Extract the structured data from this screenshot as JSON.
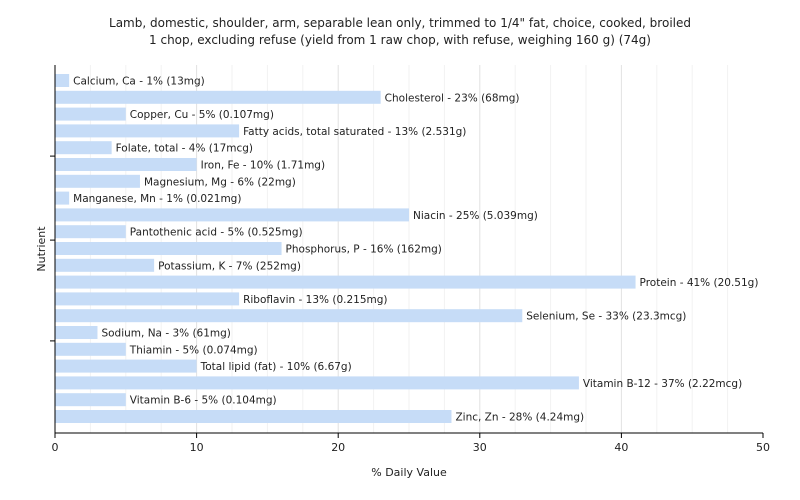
{
  "chart_data": {
    "type": "bar",
    "orientation": "horizontal",
    "title": [
      "Lamb, domestic, shoulder, arm, separable lean only, trimmed to 1/4\" fat, choice, cooked, broiled",
      "1 chop, excluding refuse (yield from 1 raw chop, with refuse, weighing 160 g) (74g)"
    ],
    "xlabel": "% Daily Value",
    "ylabel": "Nutrient",
    "xlim": [
      0,
      50
    ],
    "xticks": [
      0,
      10,
      20,
      30,
      40,
      50
    ],
    "grid": true,
    "bar_color": "#c6dcf7",
    "categories": [
      "Calcium, Ca",
      "Cholesterol",
      "Copper, Cu",
      "Fatty acids, total saturated",
      "Folate, total",
      "Iron, Fe",
      "Magnesium, Mg",
      "Manganese, Mn",
      "Niacin",
      "Pantothenic acid",
      "Phosphorus, P",
      "Potassium, K",
      "Protein",
      "Riboflavin",
      "Selenium, Se",
      "Sodium, Na",
      "Thiamin",
      "Total lipid (fat)",
      "Vitamin B-12",
      "Vitamin B-6",
      "Zinc, Zn"
    ],
    "values": [
      1,
      23,
      5,
      13,
      4,
      10,
      6,
      1,
      25,
      5,
      16,
      7,
      41,
      13,
      33,
      3,
      5,
      10,
      37,
      5,
      28
    ],
    "labels": [
      "Calcium, Ca - 1% (13mg)",
      "Cholesterol - 23% (68mg)",
      "Copper, Cu - 5% (0.107mg)",
      "Fatty acids, total saturated - 13% (2.531g)",
      "Folate, total - 4% (17mcg)",
      "Iron, Fe - 10% (1.71mg)",
      "Magnesium, Mg - 6% (22mg)",
      "Manganese, Mn - 1% (0.021mg)",
      "Niacin - 25% (5.039mg)",
      "Pantothenic acid - 5% (0.525mg)",
      "Phosphorus, P - 16% (162mg)",
      "Potassium, K - 7% (252mg)",
      "Protein - 41% (20.51g)",
      "Riboflavin - 13% (0.215mg)",
      "Selenium, Se - 33% (23.3mcg)",
      "Sodium, Na - 3% (61mg)",
      "Thiamin - 5% (0.074mg)",
      "Total lipid (fat) - 10% (6.67g)",
      "Vitamin B-12 - 37% (2.22mcg)",
      "Vitamin B-6 - 5% (0.104mg)",
      "Zinc, Zn - 28% (4.24mg)"
    ]
  }
}
